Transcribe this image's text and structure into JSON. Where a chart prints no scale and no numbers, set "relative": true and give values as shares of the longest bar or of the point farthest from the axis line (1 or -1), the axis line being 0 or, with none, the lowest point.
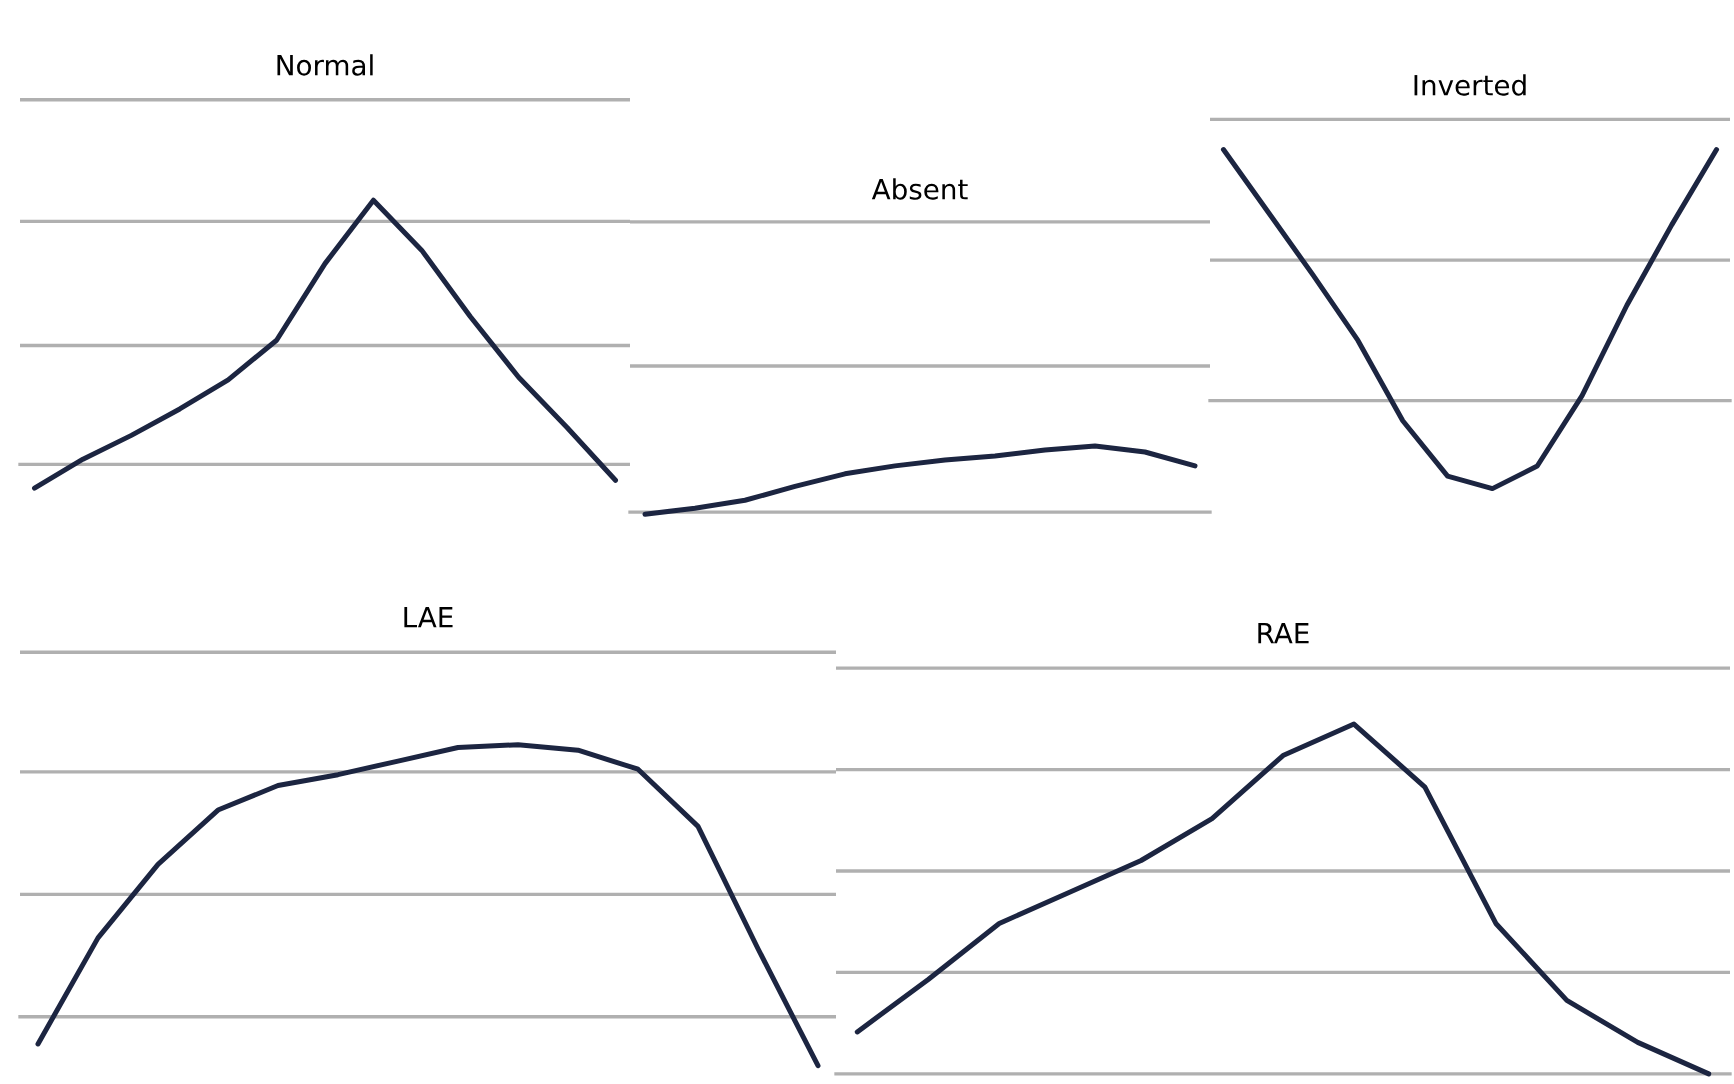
{
  "chart_data": [
    {
      "type": "line",
      "title": "Normal",
      "relative": true,
      "categories": [
        null,
        null,
        null,
        null,
        null,
        null,
        null,
        null,
        null,
        null,
        null,
        null,
        null
      ],
      "series": [
        {
          "color": "#1c2541",
          "values": [
            -0.09,
            0.02,
            0.11,
            0.21,
            0.32,
            0.47,
            0.76,
            1,
            0.81,
            0.56,
            0.33,
            0.14,
            -0.06
          ]
        }
      ],
      "ref_lines": [
        {
          "axis": "y",
          "value": 1.38,
          "color": "#b0b0b0"
        },
        {
          "axis": "y",
          "value": 0.92,
          "color": "#b0b0b0"
        },
        {
          "axis": "y",
          "value": 0.45,
          "color": "#b0b0b0"
        }
      ]
    },
    {
      "type": "line",
      "title": "Absent",
      "relative": true,
      "categories": [
        null,
        null,
        null,
        null,
        null,
        null,
        null,
        null,
        null,
        null,
        null,
        null
      ],
      "series": [
        {
          "color": "#1c2541",
          "values": [
            -0.03,
            0.06,
            0.18,
            0.39,
            0.58,
            0.7,
            0.79,
            0.85,
            0.94,
            1,
            0.91,
            0.7
          ]
        }
      ],
      "ref_lines": [
        {
          "axis": "y",
          "value": 4.39,
          "color": "#b0b0b0"
        },
        {
          "axis": "y",
          "value": 2.21,
          "color": "#b0b0b0"
        }
      ]
    },
    {
      "type": "line",
      "title": "Inverted",
      "relative": true,
      "categories": [
        null,
        null,
        null,
        null,
        null,
        null,
        null,
        null,
        null,
        null,
        null,
        null
      ],
      "series": [
        {
          "color": "#1c2541",
          "values": [
            1,
            0.75,
            0.5,
            0.24,
            -0.08,
            -0.3,
            -0.35,
            -0.26,
            0.02,
            0.38,
            0.7,
            1
          ]
        }
      ],
      "ref_lines": [
        {
          "axis": "y",
          "value": 1.12,
          "color": "#b0b0b0"
        },
        {
          "axis": "y",
          "value": 0.56,
          "color": "#b0b0b0"
        }
      ]
    },
    {
      "type": "line",
      "title": "LAE",
      "relative": true,
      "categories": [
        null,
        null,
        null,
        null,
        null,
        null,
        null,
        null,
        null,
        null,
        null,
        null,
        null,
        null
      ],
      "series": [
        {
          "color": "#1c2541",
          "values": [
            -0.1,
            0.29,
            0.56,
            0.76,
            0.85,
            0.89,
            0.94,
            0.99,
            1,
            0.98,
            0.91,
            0.7,
            0.25,
            -0.18
          ]
        }
      ],
      "ref_lines": [
        {
          "axis": "y",
          "value": 1.34,
          "color": "#b0b0b0"
        },
        {
          "axis": "y",
          "value": 0.9,
          "color": "#b0b0b0"
        },
        {
          "axis": "y",
          "value": 0.45,
          "color": "#b0b0b0"
        }
      ]
    },
    {
      "type": "line",
      "title": "RAE",
      "relative": true,
      "categories": [
        null,
        null,
        null,
        null,
        null,
        null,
        null,
        null,
        null,
        null,
        null,
        null,
        null
      ],
      "series": [
        {
          "color": "#1c2541",
          "values": [
            0.12,
            0.27,
            0.43,
            0.52,
            0.61,
            0.73,
            0.91,
            1,
            0.82,
            0.43,
            0.21,
            0.09,
            0
          ]
        }
      ],
      "ref_lines": [
        {
          "axis": "y",
          "value": 1.16,
          "color": "#b0b0b0"
        },
        {
          "axis": "y",
          "value": 0.87,
          "color": "#b0b0b0"
        },
        {
          "axis": "y",
          "value": 0.58,
          "color": "#b0b0b0"
        },
        {
          "axis": "y",
          "value": 0.29,
          "color": "#b0b0b0"
        }
      ]
    }
  ]
}
